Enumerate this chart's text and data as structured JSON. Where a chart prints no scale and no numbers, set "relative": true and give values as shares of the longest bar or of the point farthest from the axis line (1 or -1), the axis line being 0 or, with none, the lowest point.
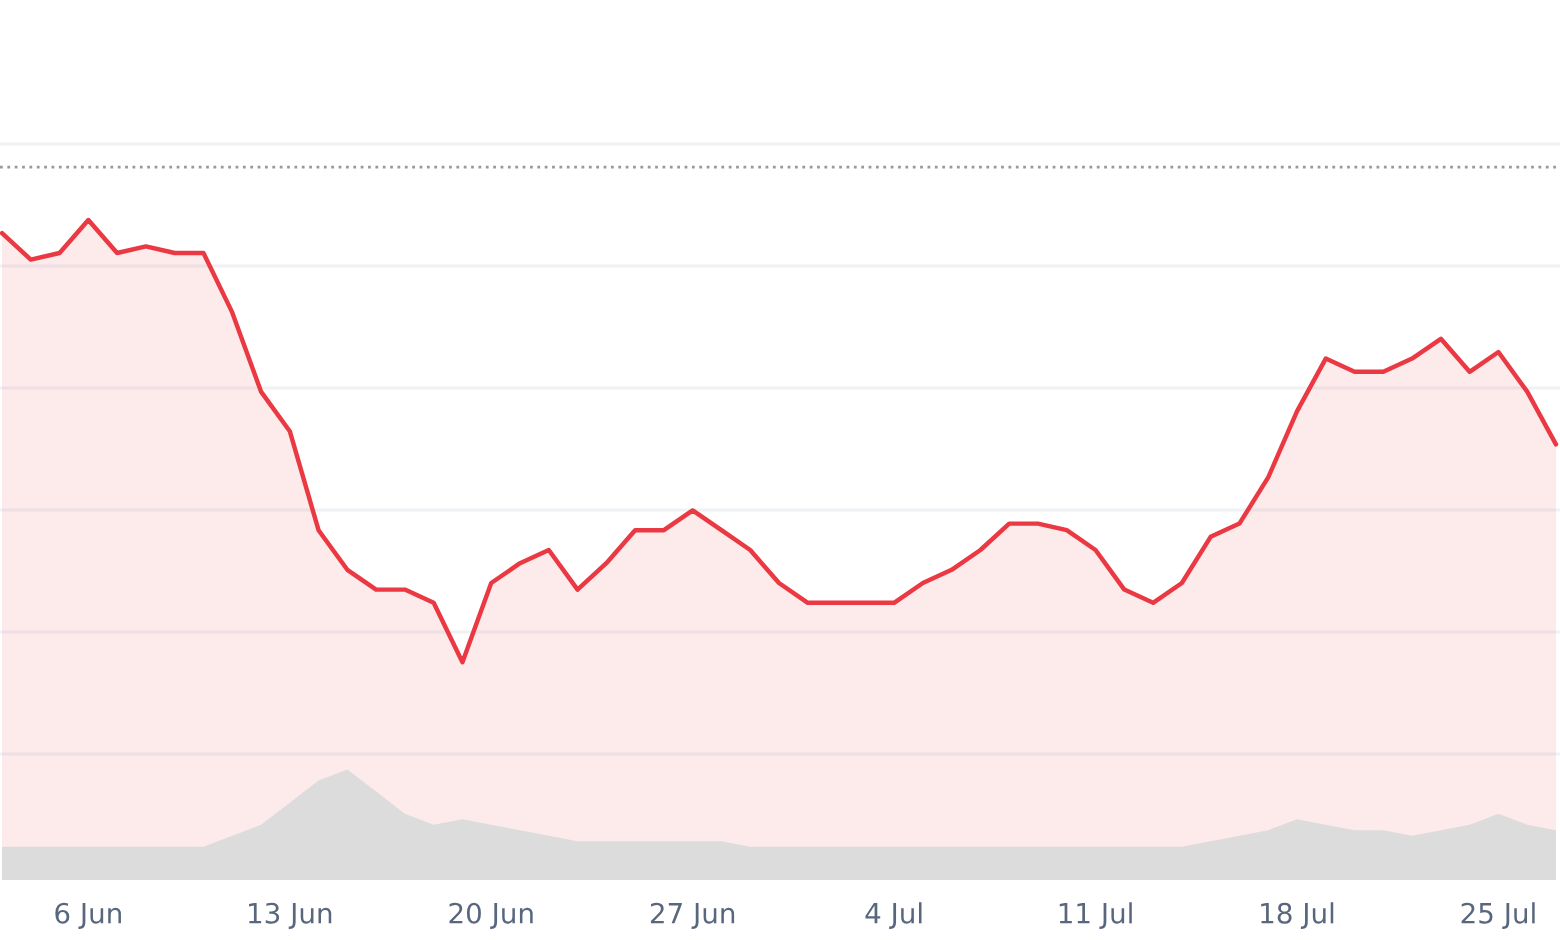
{
  "chart_data": [
    {
      "type": "area",
      "relative": true,
      "color": "#ea3943",
      "grid": "y",
      "tick_labels": "x",
      "categories": [
        null,
        null,
        null,
        "6 Jun",
        null,
        null,
        null,
        null,
        null,
        null,
        "13 Jun",
        null,
        null,
        null,
        null,
        null,
        null,
        "20 Jun",
        null,
        null,
        null,
        null,
        null,
        null,
        "27 Jun",
        null,
        null,
        null,
        null,
        null,
        null,
        "4 Jul",
        null,
        null,
        null,
        null,
        null,
        null,
        "11 Jul",
        null,
        null,
        null,
        null,
        null,
        null,
        "18 Jul",
        null,
        null,
        null,
        null,
        null,
        null,
        "25 Jul",
        null,
        null
      ],
      "values": [
        0.98,
        0.94,
        0.95,
        1,
        0.95,
        0.96,
        0.95,
        0.95,
        0.86,
        0.74,
        0.68,
        0.53,
        0.47,
        0.44,
        0.44,
        0.42,
        0.33,
        0.45,
        0.48,
        0.5,
        0.44,
        0.48,
        0.53,
        0.53,
        0.56,
        0.53,
        0.5,
        0.45,
        0.42,
        0.42,
        0.42,
        0.42,
        0.45,
        0.47,
        0.5,
        0.54,
        0.54,
        0.53,
        0.5,
        0.44,
        0.42,
        0.45,
        0.52,
        0.54,
        0.61,
        0.71,
        0.79,
        0.77,
        0.77,
        0.79,
        0.82,
        0.77,
        0.8,
        0.74,
        0.66
      ],
      "ref_lines": [
        {
          "axis": "y",
          "value": 1.08,
          "line_style": "dotted",
          "color": "#999999"
        }
      ]
    },
    {
      "type": "area",
      "relative": true,
      "color": "#dcdcdc",
      "categories": [
        null,
        null,
        null,
        null,
        null,
        null,
        null,
        null,
        null,
        null,
        null,
        null,
        null,
        null,
        null,
        null,
        null,
        null,
        null,
        null,
        null,
        null,
        null,
        null,
        null,
        null,
        null,
        null,
        null,
        null,
        null,
        null,
        null,
        null,
        null,
        null,
        null,
        null,
        null,
        null,
        null,
        null,
        null,
        null,
        null,
        null,
        null,
        null,
        null,
        null,
        null,
        null,
        null,
        null,
        null
      ],
      "values": [
        0.3,
        0.3,
        0.3,
        0.3,
        0.3,
        0.3,
        0.3,
        0.3,
        0.4,
        0.5,
        0.7,
        0.9,
        1,
        0.8,
        0.6,
        0.5,
        0.55,
        0.5,
        0.45,
        0.4,
        0.35,
        0.35,
        0.35,
        0.35,
        0.35,
        0.35,
        0.3,
        0.3,
        0.3,
        0.3,
        0.3,
        0.3,
        0.3,
        0.3,
        0.3,
        0.3,
        0.3,
        0.3,
        0.3,
        0.3,
        0.3,
        0.3,
        0.35,
        0.4,
        0.45,
        0.55,
        0.5,
        0.45,
        0.45,
        0.4,
        0.45,
        0.5,
        0.6,
        0.5,
        0.45
      ]
    }
  ]
}
